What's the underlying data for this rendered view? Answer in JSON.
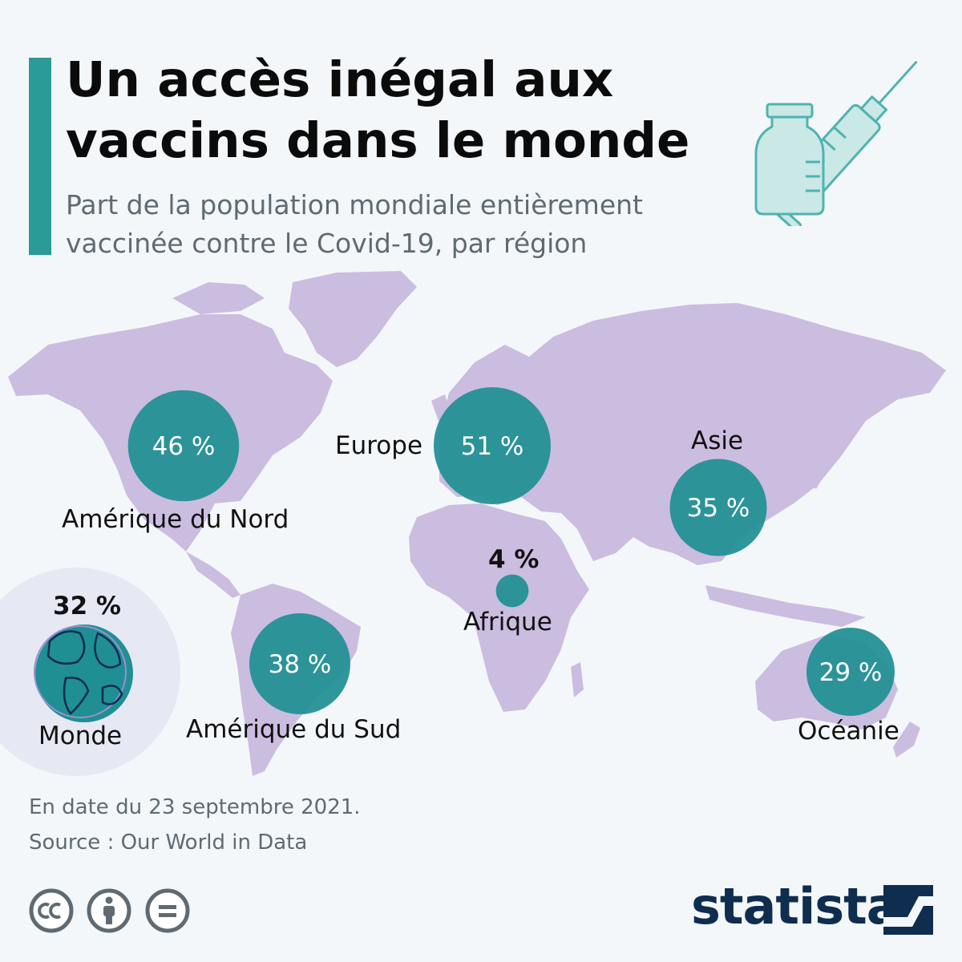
{
  "title": "Un accès inégal aux vaccins dans le monde",
  "subtitle": "Part de la population mondiale entièrement vaccinée contre le Covid-19, par région",
  "colors": {
    "accent": "#2b9b97",
    "circle_fill": "#1f8f93",
    "land": "#cbbde0",
    "background": "#f3f7fa",
    "logo": "#0f2d4f"
  },
  "chart_data": {
    "type": "proportional-symbol-map",
    "regions": [
      {
        "name": "Amérique du Nord",
        "value": 46,
        "value_label": "46 %"
      },
      {
        "name": "Europe",
        "value": 51,
        "value_label": "51 %"
      },
      {
        "name": "Asie",
        "value": 35,
        "value_label": "35 %"
      },
      {
        "name": "Afrique",
        "value": 4,
        "value_label": "4 %"
      },
      {
        "name": "Amérique du Sud",
        "value": 38,
        "value_label": "38 %"
      },
      {
        "name": "Océanie",
        "value": 29,
        "value_label": "29 %"
      }
    ],
    "world": {
      "name": "Monde",
      "value": 32,
      "value_label": "32 %"
    }
  },
  "footnotes": {
    "date": "En date du 23 septembre 2021.",
    "source": "Source : Our World in Data"
  },
  "license_icons": [
    "cc-icon",
    "attribution-icon",
    "no-derivatives-icon"
  ],
  "logo": {
    "text": "statista"
  }
}
